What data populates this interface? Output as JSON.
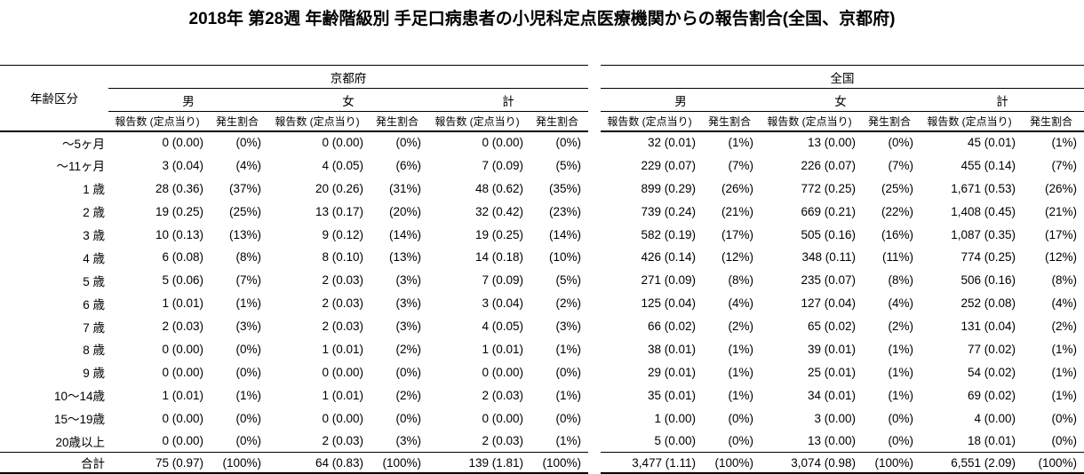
{
  "title": "2018年 第28週 年齢階級別 手足口病患者の小児科定点医療機関からの報告割合(全国、京都府)",
  "table": {
    "corner_label": "年齢区分",
    "regions": [
      "京都府",
      "全国"
    ],
    "sex_labels": [
      "男",
      "女",
      "計"
    ],
    "count_label": "報告数 (定点当り)",
    "rate_label": "発生割合",
    "rows": [
      {
        "age": "～5ヶ月",
        "cells": [
          "0 (0.00)",
          "(0%)",
          "0 (0.00)",
          "(0%)",
          "0 (0.00)",
          "(0%)",
          "32 (0.01)",
          "(1%)",
          "13 (0.00)",
          "(0%)",
          "45 (0.01)",
          "(1%)"
        ]
      },
      {
        "age": "～11ヶ月",
        "cells": [
          "3 (0.04)",
          "(4%)",
          "4 (0.05)",
          "(6%)",
          "7 (0.09)",
          "(5%)",
          "229 (0.07)",
          "(7%)",
          "226 (0.07)",
          "(7%)",
          "455 (0.14)",
          "(7%)"
        ]
      },
      {
        "age": "1 歳",
        "cells": [
          "28 (0.36)",
          "(37%)",
          "20 (0.26)",
          "(31%)",
          "48 (0.62)",
          "(35%)",
          "899 (0.29)",
          "(26%)",
          "772 (0.25)",
          "(25%)",
          "1,671 (0.53)",
          "(26%)"
        ]
      },
      {
        "age": "2 歳",
        "cells": [
          "19 (0.25)",
          "(25%)",
          "13 (0.17)",
          "(20%)",
          "32 (0.42)",
          "(23%)",
          "739 (0.24)",
          "(21%)",
          "669 (0.21)",
          "(22%)",
          "1,408 (0.45)",
          "(21%)"
        ]
      },
      {
        "age": "3 歳",
        "cells": [
          "10 (0.13)",
          "(13%)",
          "9 (0.12)",
          "(14%)",
          "19 (0.25)",
          "(14%)",
          "582 (0.19)",
          "(17%)",
          "505 (0.16)",
          "(16%)",
          "1,087 (0.35)",
          "(17%)"
        ]
      },
      {
        "age": "4 歳",
        "cells": [
          "6 (0.08)",
          "(8%)",
          "8 (0.10)",
          "(13%)",
          "14 (0.18)",
          "(10%)",
          "426 (0.14)",
          "(12%)",
          "348 (0.11)",
          "(11%)",
          "774 (0.25)",
          "(12%)"
        ]
      },
      {
        "age": "5 歳",
        "cells": [
          "5 (0.06)",
          "(7%)",
          "2 (0.03)",
          "(3%)",
          "7 (0.09)",
          "(5%)",
          "271 (0.09)",
          "(8%)",
          "235 (0.07)",
          "(8%)",
          "506 (0.16)",
          "(8%)"
        ]
      },
      {
        "age": "6 歳",
        "cells": [
          "1 (0.01)",
          "(1%)",
          "2 (0.03)",
          "(3%)",
          "3 (0.04)",
          "(2%)",
          "125 (0.04)",
          "(4%)",
          "127 (0.04)",
          "(4%)",
          "252 (0.08)",
          "(4%)"
        ]
      },
      {
        "age": "7 歳",
        "cells": [
          "2 (0.03)",
          "(3%)",
          "2 (0.03)",
          "(3%)",
          "4 (0.05)",
          "(3%)",
          "66 (0.02)",
          "(2%)",
          "65 (0.02)",
          "(2%)",
          "131 (0.04)",
          "(2%)"
        ]
      },
      {
        "age": "8 歳",
        "cells": [
          "0 (0.00)",
          "(0%)",
          "1 (0.01)",
          "(2%)",
          "1 (0.01)",
          "(1%)",
          "38 (0.01)",
          "(1%)",
          "39 (0.01)",
          "(1%)",
          "77 (0.02)",
          "(1%)"
        ]
      },
      {
        "age": "9 歳",
        "cells": [
          "0 (0.00)",
          "(0%)",
          "0 (0.00)",
          "(0%)",
          "0 (0.00)",
          "(0%)",
          "29 (0.01)",
          "(1%)",
          "25 (0.01)",
          "(1%)",
          "54 (0.02)",
          "(1%)"
        ]
      },
      {
        "age": "10～14歳",
        "cells": [
          "1 (0.01)",
          "(1%)",
          "1 (0.01)",
          "(2%)",
          "2 (0.03)",
          "(1%)",
          "35 (0.01)",
          "(1%)",
          "34 (0.01)",
          "(1%)",
          "69 (0.02)",
          "(1%)"
        ]
      },
      {
        "age": "15～19歳",
        "cells": [
          "0 (0.00)",
          "(0%)",
          "0 (0.00)",
          "(0%)",
          "0 (0.00)",
          "(0%)",
          "1 (0.00)",
          "(0%)",
          "3 (0.00)",
          "(0%)",
          "4 (0.00)",
          "(0%)"
        ]
      },
      {
        "age": "20歳以上",
        "cells": [
          "0 (0.00)",
          "(0%)",
          "2 (0.03)",
          "(3%)",
          "2 (0.03)",
          "(1%)",
          "5 (0.00)",
          "(0%)",
          "13 (0.00)",
          "(0%)",
          "18 (0.01)",
          "(0%)"
        ]
      },
      {
        "age": "合計",
        "is_total": true,
        "cells": [
          "75 (0.97)",
          "(100%)",
          "64 (0.83)",
          "(100%)",
          "139 (1.81)",
          "(100%)",
          "3,477 (1.11)",
          "(100%)",
          "3,074 (0.98)",
          "(100%)",
          "6,551 (2.09)",
          "(100%)"
        ]
      }
    ]
  }
}
